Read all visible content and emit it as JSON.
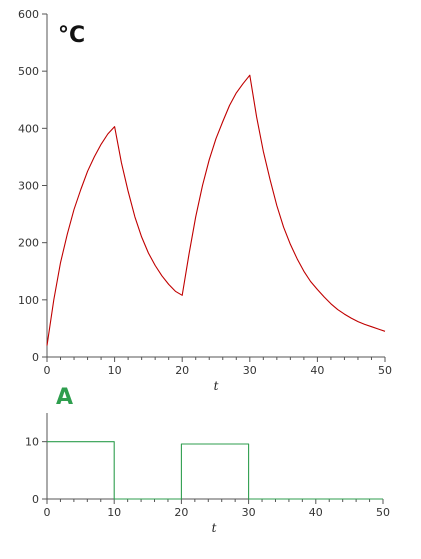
{
  "chart_data": [
    {
      "type": "line",
      "title": "",
      "unit_label": "°C",
      "xlabel": "t",
      "ylabel": "",
      "xlim": [
        0,
        50
      ],
      "ylim": [
        0,
        600
      ],
      "x_ticks": [
        "0",
        "10",
        "20",
        "30",
        "40",
        "50"
      ],
      "y_ticks": [
        "0",
        "100",
        "200",
        "300",
        "400",
        "500",
        "600"
      ],
      "grid": false,
      "series": [
        {
          "color": "#c00000",
          "x": [
            0,
            1,
            2,
            3,
            4,
            5,
            6,
            7,
            8,
            9,
            10,
            11,
            12,
            13,
            14,
            15,
            16,
            17,
            18,
            19,
            20,
            21,
            22,
            23,
            24,
            25,
            26,
            27,
            28,
            29,
            30,
            31,
            32,
            33,
            34,
            35,
            36,
            37,
            38,
            39,
            40,
            41,
            42,
            43,
            44,
            45,
            46,
            47,
            48,
            49,
            50
          ],
          "values": [
            20,
            100,
            165,
            215,
            258,
            293,
            325,
            350,
            372,
            390,
            403,
            340,
            290,
            245,
            210,
            182,
            160,
            142,
            127,
            115,
            108,
            180,
            245,
            300,
            345,
            382,
            412,
            440,
            462,
            478,
            493,
            420,
            360,
            310,
            265,
            227,
            197,
            172,
            150,
            132,
            118,
            105,
            93,
            83,
            75,
            68,
            62,
            57,
            53,
            49,
            45
          ]
        }
      ]
    },
    {
      "type": "line",
      "title": "",
      "unit_label": "A",
      "xlabel": "t",
      "ylabel": "",
      "xlim": [
        0,
        50
      ],
      "ylim": [
        0,
        15
      ],
      "x_ticks": [
        "0",
        "10",
        "20",
        "30",
        "40",
        "50"
      ],
      "y_ticks": [
        "0",
        "10"
      ],
      "grid": false,
      "series": [
        {
          "color": "#2e9e4e",
          "x": [
            0,
            10,
            10,
            20,
            20,
            30,
            30,
            50
          ],
          "values": [
            10,
            10,
            0,
            0,
            9.6,
            9.6,
            0,
            0
          ]
        }
      ]
    }
  ],
  "colors": {
    "axis": "#555555",
    "temperature_label": "#111111",
    "current_label": "#2e9e4e"
  }
}
